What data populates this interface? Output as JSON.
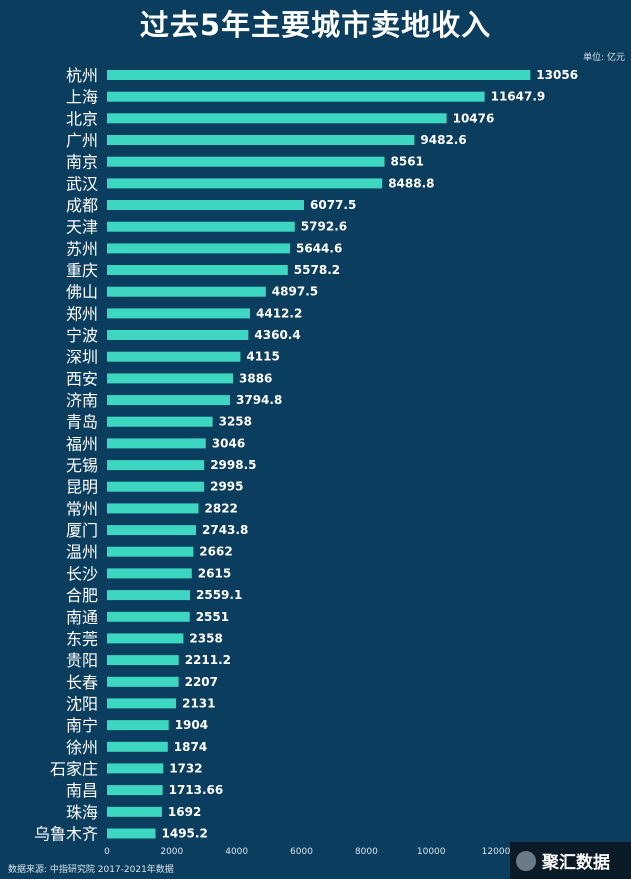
{
  "page": {
    "title": "过去5年主要城市卖地收入"
  },
  "colors": {
    "background": "#0b3d5e",
    "bar": "#3dd6c1",
    "text": "#ffffff",
    "muted": "#d8e6ee"
  },
  "watermark": {
    "text": "聚汇数据",
    "icon": "logo-icon"
  },
  "chart_data": {
    "type": "bar",
    "orientation": "horizontal",
    "title": "过去5年主要城市卖地收入",
    "unit_label": "单位: 亿元",
    "source": "数据来源: 中指研究院  2017-2021年数据",
    "xlim": [
      0,
      13000
    ],
    "xticks": [
      "0",
      "2000",
      "4000",
      "6000",
      "8000",
      "10000",
      "12000"
    ],
    "xtick_values": [
      0,
      2000,
      4000,
      6000,
      8000,
      10000,
      12000
    ],
    "categories": [
      "杭州",
      "上海",
      "北京",
      "广州",
      "南京",
      "武汉",
      "成都",
      "天津",
      "苏州",
      "重庆",
      "佛山",
      "郑州",
      "宁波",
      "深圳",
      "西安",
      "济南",
      "青岛",
      "福州",
      "无锡",
      "昆明",
      "常州",
      "厦门",
      "温州",
      "长沙",
      "合肥",
      "南通",
      "东莞",
      "贵阳",
      "长春",
      "沈阳",
      "南宁",
      "徐州",
      "石家庄",
      "南昌",
      "珠海",
      "乌鲁木齐"
    ],
    "values": [
      13056,
      11647.9,
      10476,
      9482.6,
      8561,
      8488.8,
      6077.5,
      5792.6,
      5644.6,
      5578.2,
      4897.5,
      4412.2,
      4360.4,
      4115,
      3886,
      3794.8,
      3258,
      3046,
      2998.5,
      2995,
      2822,
      2743.8,
      2662,
      2615,
      2559.1,
      2551,
      2358,
      2211.2,
      2207,
      2131,
      1904,
      1874,
      1732,
      1713.66,
      1692,
      1495.2
    ],
    "value_labels": [
      "13056",
      "11647.9",
      "10476",
      "9482.6",
      "8561",
      "8488.8",
      "6077.5",
      "5792.6",
      "5644.6",
      "5578.2",
      "4897.5",
      "4412.2",
      "4360.4",
      "4115",
      "3886",
      "3794.8",
      "3258",
      "3046",
      "2998.5",
      "2995",
      "2822",
      "2743.8",
      "2662",
      "2615",
      "2559.1",
      "2551",
      "2358",
      "2211.2",
      "2207",
      "2131",
      "1904",
      "1874",
      "1732",
      "1713.66",
      "1692",
      "1495.2"
    ]
  }
}
